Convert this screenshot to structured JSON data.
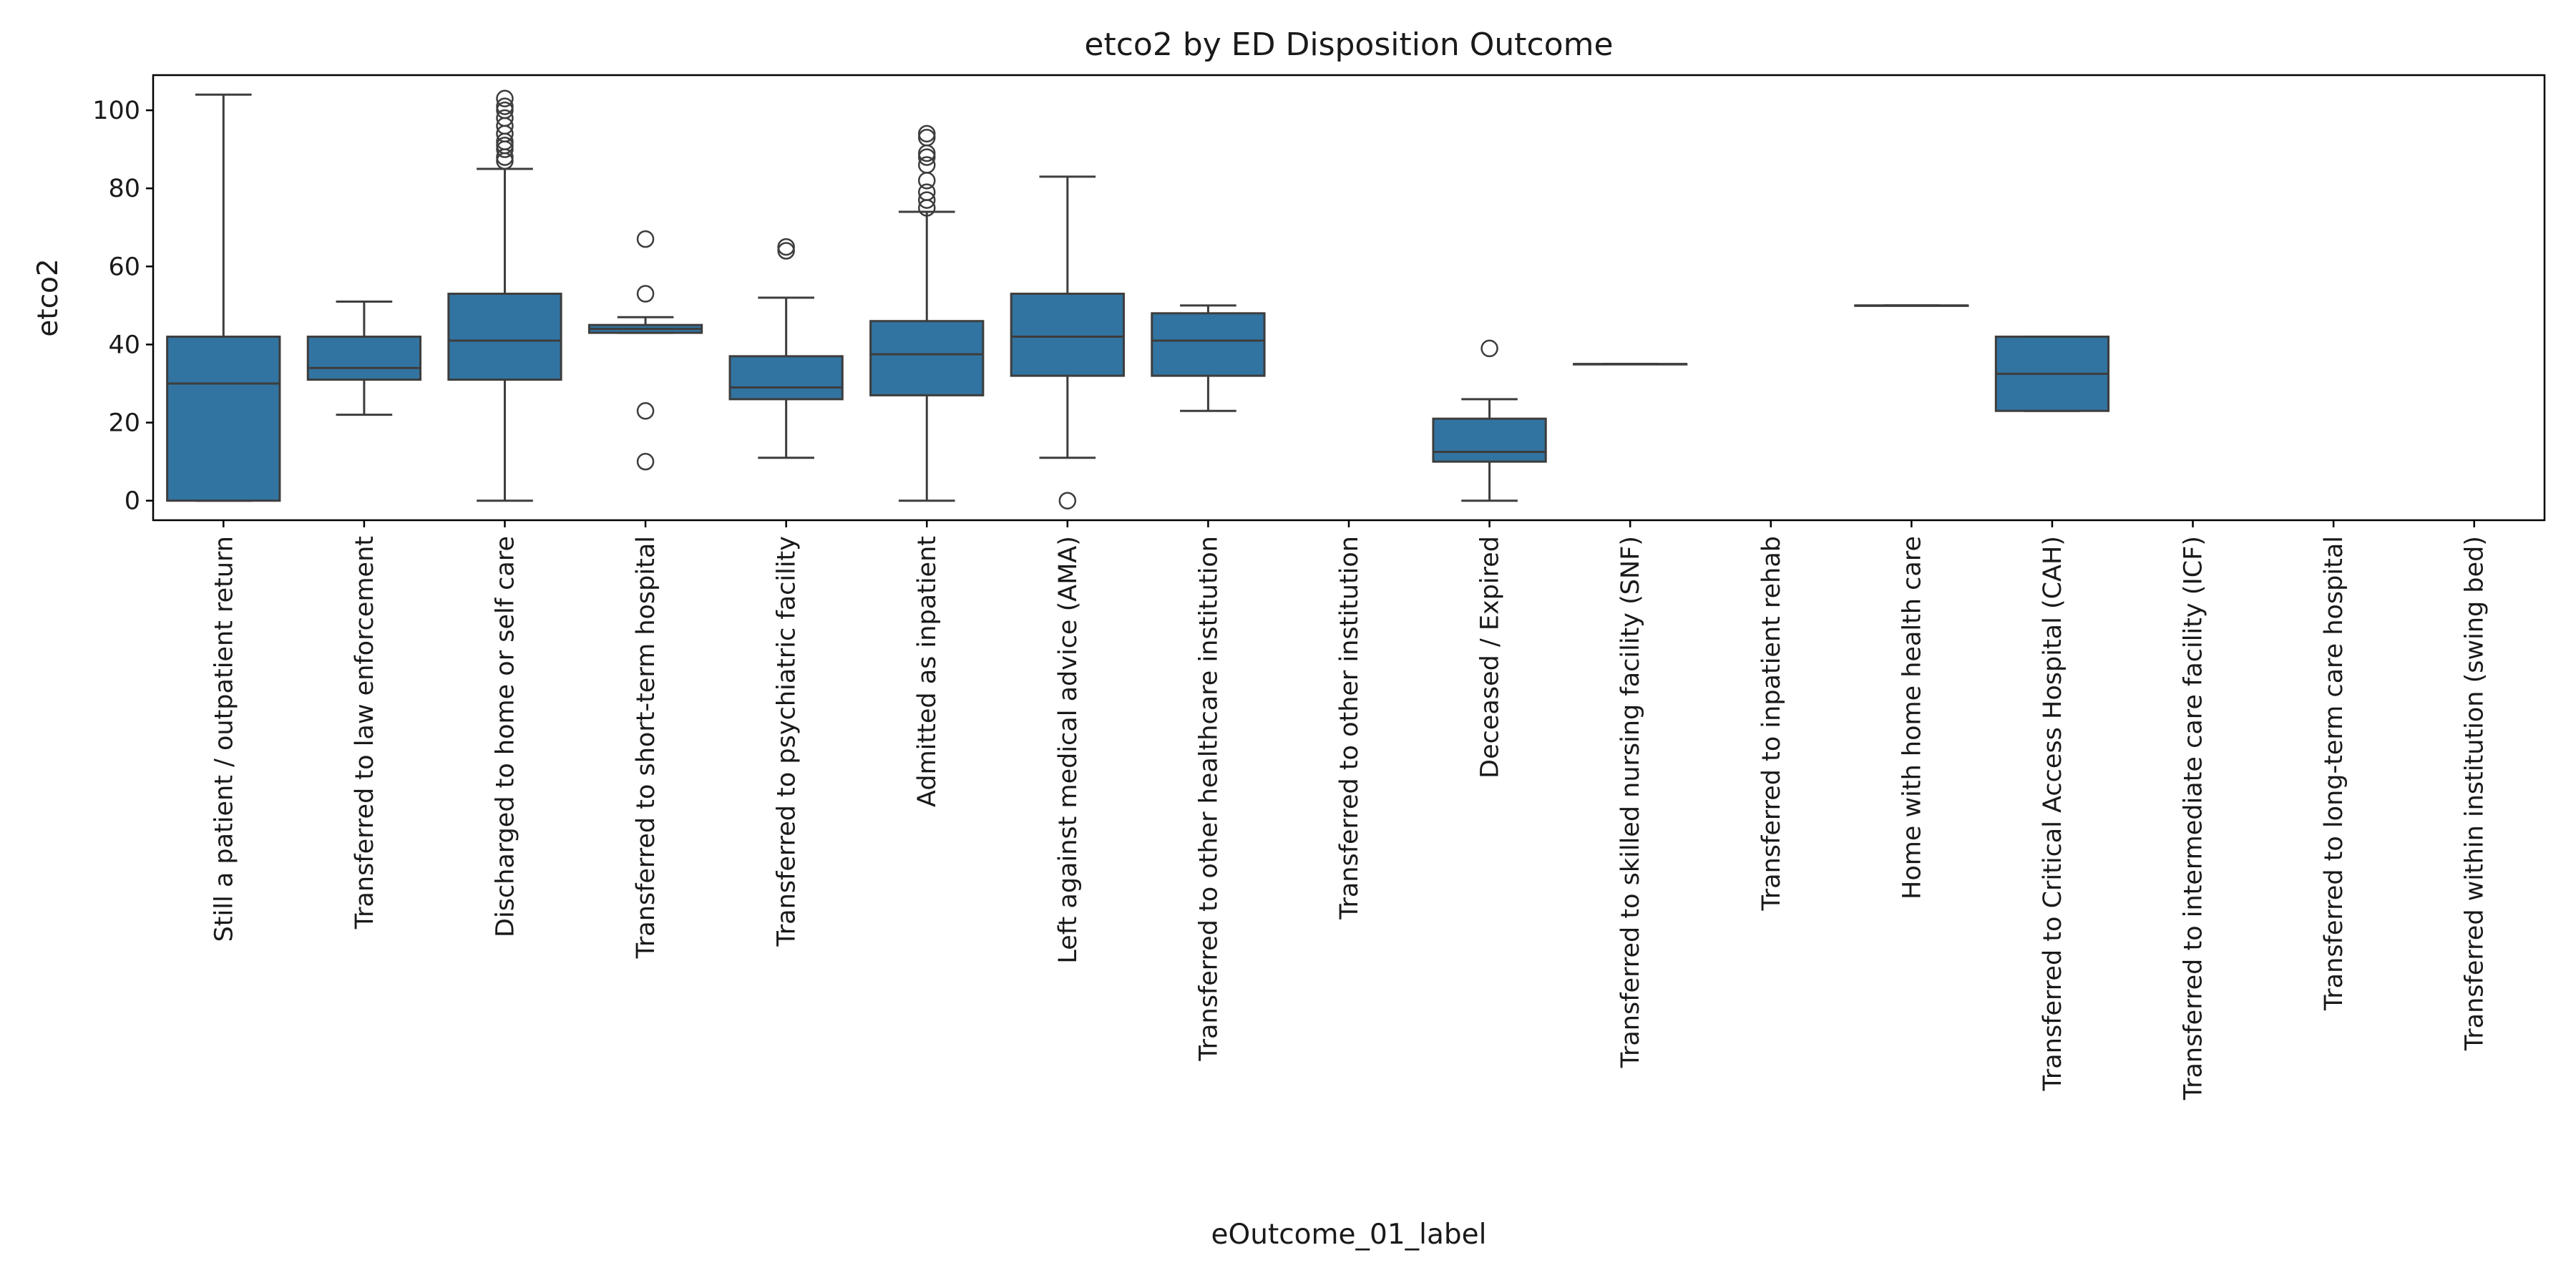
{
  "chart_data": {
    "type": "box",
    "title": "etco2 by ED Disposition Outcome",
    "xlabel": "eOutcome_01_label",
    "ylabel": "etco2",
    "ylim": [
      -5,
      109
    ],
    "yticks": [
      0,
      20,
      40,
      60,
      80,
      100
    ],
    "grid": false,
    "legend": "none",
    "colors": {
      "box": "#3274a1",
      "line": "#3d3d3d"
    },
    "categories": [
      "Still a patient / outpatient return",
      "Transferred to law enforcement",
      "Discharged to home or self care",
      "Transferred to short-term hospital",
      "Transferred to psychiatric facility",
      "Admitted as inpatient",
      "Left against medical advice (AMA)",
      "Transferred to other healthcare institution",
      "Transferred to other institution",
      "Deceased / Expired",
      "Transferred to skilled nursing facility (SNF)",
      "Transferred to inpatient rehab",
      "Home with home health care",
      "Transferred to Critical Access Hospital (CAH)",
      "Transferred to intermediate care facility (ICF)",
      "Transferred to long-term care hospital",
      "Transferred within institution (swing bed)"
    ],
    "boxes": [
      {
        "category": "Still a patient / outpatient return",
        "whisker_low": 0,
        "q1": 0,
        "median": 30,
        "q3": 42,
        "whisker_high": 104,
        "outliers": []
      },
      {
        "category": "Transferred to law enforcement",
        "whisker_low": 22,
        "q1": 31,
        "median": 34,
        "q3": 42,
        "whisker_high": 51,
        "outliers": []
      },
      {
        "category": "Discharged to home or self care",
        "whisker_low": 0,
        "q1": 31,
        "median": 41,
        "q3": 53,
        "whisker_high": 85,
        "outliers": [
          87,
          88,
          90,
          91,
          92,
          94,
          96,
          98,
          100,
          101,
          103
        ]
      },
      {
        "category": "Transferred to short-term hospital",
        "whisker_low": 43,
        "q1": 43,
        "median": 44,
        "q3": 45,
        "whisker_high": 47,
        "outliers": [
          10,
          23,
          53,
          67
        ]
      },
      {
        "category": "Transferred to psychiatric facility",
        "whisker_low": 11,
        "q1": 26,
        "median": 29,
        "q3": 37,
        "whisker_high": 52,
        "outliers": [
          64,
          65
        ]
      },
      {
        "category": "Admitted as inpatient",
        "whisker_low": 0,
        "q1": 27,
        "median": 37.5,
        "q3": 46,
        "whisker_high": 74,
        "outliers": [
          75,
          77,
          79,
          82,
          86,
          88,
          89,
          93,
          94
        ]
      },
      {
        "category": "Left against medical advice (AMA)",
        "whisker_low": 11,
        "q1": 32,
        "median": 42,
        "q3": 53,
        "whisker_high": 83,
        "outliers": [
          0
        ]
      },
      {
        "category": "Transferred to other healthcare institution",
        "whisker_low": 23,
        "q1": 32,
        "median": 41,
        "q3": 48,
        "whisker_high": 50,
        "outliers": []
      },
      {
        "category": "Deceased / Expired",
        "whisker_low": 0,
        "q1": 10,
        "median": 12.5,
        "q3": 21,
        "whisker_high": 26,
        "outliers": [
          39
        ]
      },
      {
        "category": "Transferred to skilled nursing facility (SNF)",
        "whisker_low": 35,
        "q1": 35,
        "median": 35,
        "q3": 35,
        "whisker_high": 35,
        "outliers": []
      },
      {
        "category": "Home with home health care",
        "whisker_low": 50,
        "q1": 50,
        "median": 50,
        "q3": 50,
        "whisker_high": 50,
        "outliers": []
      },
      {
        "category": "Transferred to Critical Access Hospital (CAH)",
        "whisker_low": 23,
        "q1": 23,
        "median": 32.5,
        "q3": 42,
        "whisker_high": 42,
        "outliers": []
      }
    ]
  }
}
